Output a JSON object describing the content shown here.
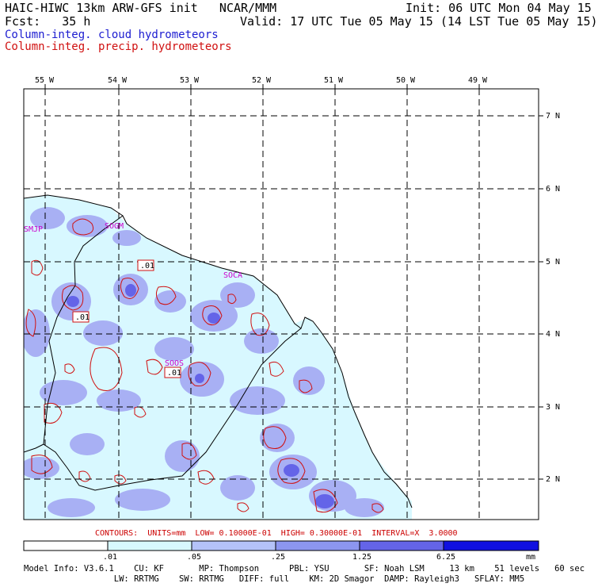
{
  "header": {
    "title_left": "HAIC-HIWC 13km ARW-GFS init   NCAR/MMM",
    "init": "Init: 06 UTC Mon 04 May 15",
    "fcst": "Fcst:   35 h",
    "valid": "Valid: 17 UTC Tue 05 May 15 (14 LST Tue 05 May 15)",
    "legend_cloud": "Column-integ. cloud hydrometeors",
    "legend_precip": "Column-integ. precip. hydrometeors"
  },
  "map": {
    "lon_labels": [
      "55 W",
      "54 W",
      "53 W",
      "52 W",
      "51 W",
      "50 W",
      "49 W"
    ],
    "lat_labels": [
      "7 N",
      "6 N",
      "5 N",
      "4 N",
      "3 N",
      "2 N"
    ],
    "stations": [
      "SMJP",
      "SOGM",
      "SOCA",
      "SOOS"
    ],
    "contour_labels": [
      ".01",
      ".01",
      ".01"
    ]
  },
  "contours_line": "CONTOURS:  UNITS=mm  LOW= 0.10000E-01  HIGH= 0.30000E-01  INTERVAL=X  3.0000",
  "colorbar": {
    "ticks": [
      ".01",
      ".05",
      ".25",
      "1.25",
      "6.25"
    ],
    "units": "mm",
    "colors": [
      "#ffffff",
      "#d8f8ff",
      "#b4c2f8",
      "#8c96f0",
      "#6464e8",
      "#1010e0"
    ]
  },
  "model_info": {
    "line1": "Model Info: V3.6.1    CU: KF       MP: Thompson      PBL: YSU       SF: Noah LSM     13 km    51 levels   60 sec",
    "line2": "                  LW: RRTMG    SW: RRTMG   DIFF: full    KM: 2D Smagor  DAMP: Rayleigh3   SFLAY: MM5"
  },
  "colors": {
    "cloud_light": "#d8f8ff",
    "cloud_mid": "#a8b0f4",
    "cloud_dark": "#6464e8",
    "precip_contour": "#d01010",
    "station_label": "#cc00cc"
  }
}
